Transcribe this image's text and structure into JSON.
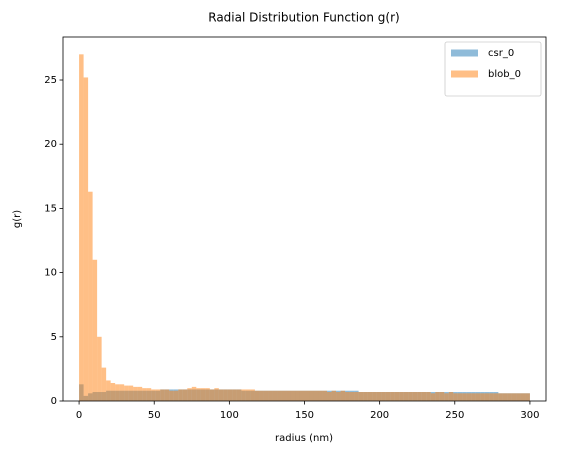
{
  "chart_data": {
    "type": "histogram",
    "title": "Radial Distribution Function g(r)",
    "x_label": "radius (nm)",
    "y_label": "g(r)",
    "bins": [
      0,
      3,
      6,
      9,
      12,
      15,
      18,
      21,
      24,
      27,
      30,
      33,
      36,
      39,
      42,
      45,
      48,
      51,
      54,
      57,
      60,
      63,
      66,
      69,
      72,
      75,
      78,
      81,
      84,
      87,
      90,
      93,
      96,
      99,
      102,
      105,
      108,
      111,
      114,
      117,
      120,
      123,
      126,
      129,
      132,
      135,
      138,
      141,
      144,
      147,
      150,
      153,
      156,
      159,
      162,
      165,
      168,
      171,
      174,
      177,
      180,
      183,
      186,
      189,
      192,
      195,
      198,
      201,
      204,
      207,
      210,
      213,
      216,
      219,
      222,
      225,
      228,
      231,
      234,
      237,
      240,
      243,
      246,
      249,
      252,
      255,
      258,
      261,
      264,
      267,
      270,
      273,
      276,
      279,
      282,
      285,
      288,
      291,
      294,
      297,
      300
    ],
    "series": [
      {
        "name": "csr_0",
        "color": "#1f77b4",
        "values": [
          1.3,
          0.4,
          0.6,
          0.7,
          0.7,
          0.7,
          0.8,
          0.8,
          0.8,
          0.8,
          0.8,
          0.8,
          0.8,
          0.8,
          0.8,
          0.8,
          0.8,
          0.8,
          0.9,
          0.9,
          0.9,
          0.9,
          0.9,
          0.9,
          0.9,
          0.9,
          0.9,
          0.9,
          0.9,
          0.9,
          0.9,
          0.9,
          0.9,
          0.9,
          0.9,
          0.9,
          0.8,
          0.8,
          0.8,
          0.8,
          0.8,
          0.8,
          0.8,
          0.8,
          0.8,
          0.8,
          0.8,
          0.8,
          0.8,
          0.8,
          0.8,
          0.8,
          0.8,
          0.8,
          0.8,
          0.8,
          0.8,
          0.8,
          0.8,
          0.8,
          0.8,
          0.8,
          0.7,
          0.7,
          0.7,
          0.7,
          0.7,
          0.7,
          0.7,
          0.7,
          0.7,
          0.7,
          0.7,
          0.7,
          0.7,
          0.7,
          0.7,
          0.7,
          0.7,
          0.7,
          0.7,
          0.7,
          0.7,
          0.7,
          0.7,
          0.7,
          0.7,
          0.7,
          0.7,
          0.7,
          0.7,
          0.7,
          0.7,
          0.6,
          0.6,
          0.6,
          0.6,
          0.6,
          0.6,
          0.6
        ]
      },
      {
        "name": "blob_0",
        "color": "#ff7f0e",
        "values": [
          27.0,
          25.2,
          16.3,
          11.0,
          5.0,
          2.6,
          1.6,
          1.4,
          1.3,
          1.3,
          1.2,
          1.2,
          1.1,
          1.1,
          1.0,
          1.0,
          0.9,
          0.9,
          0.9,
          0.9,
          0.8,
          0.8,
          0.9,
          0.9,
          1.0,
          1.1,
          1.0,
          1.0,
          1.0,
          0.9,
          1.0,
          0.9,
          0.9,
          0.9,
          0.9,
          0.9,
          0.9,
          0.9,
          0.9,
          0.8,
          0.8,
          0.8,
          0.8,
          0.8,
          0.8,
          0.8,
          0.8,
          0.8,
          0.8,
          0.8,
          0.8,
          0.8,
          0.8,
          0.8,
          0.8,
          0.7,
          0.8,
          0.7,
          0.8,
          0.7,
          0.7,
          0.7,
          0.7,
          0.7,
          0.7,
          0.7,
          0.7,
          0.7,
          0.7,
          0.7,
          0.7,
          0.7,
          0.7,
          0.7,
          0.7,
          0.7,
          0.7,
          0.7,
          0.6,
          0.7,
          0.7,
          0.6,
          0.7,
          0.6,
          0.6,
          0.6,
          0.6,
          0.6,
          0.6,
          0.6,
          0.6,
          0.6,
          0.6,
          0.6,
          0.6,
          0.6,
          0.6,
          0.6,
          0.6,
          0.6
        ]
      }
    ],
    "alpha": 0.5,
    "xlim": [
      -10.7,
      310.7
    ],
    "xticks": [
      0,
      50,
      100,
      150,
      200,
      250,
      300
    ],
    "ylim": [
      0,
      28.35
    ],
    "yticks": [
      0,
      5,
      10,
      15,
      20,
      25
    ],
    "legend": "upper right",
    "grid": false
  }
}
